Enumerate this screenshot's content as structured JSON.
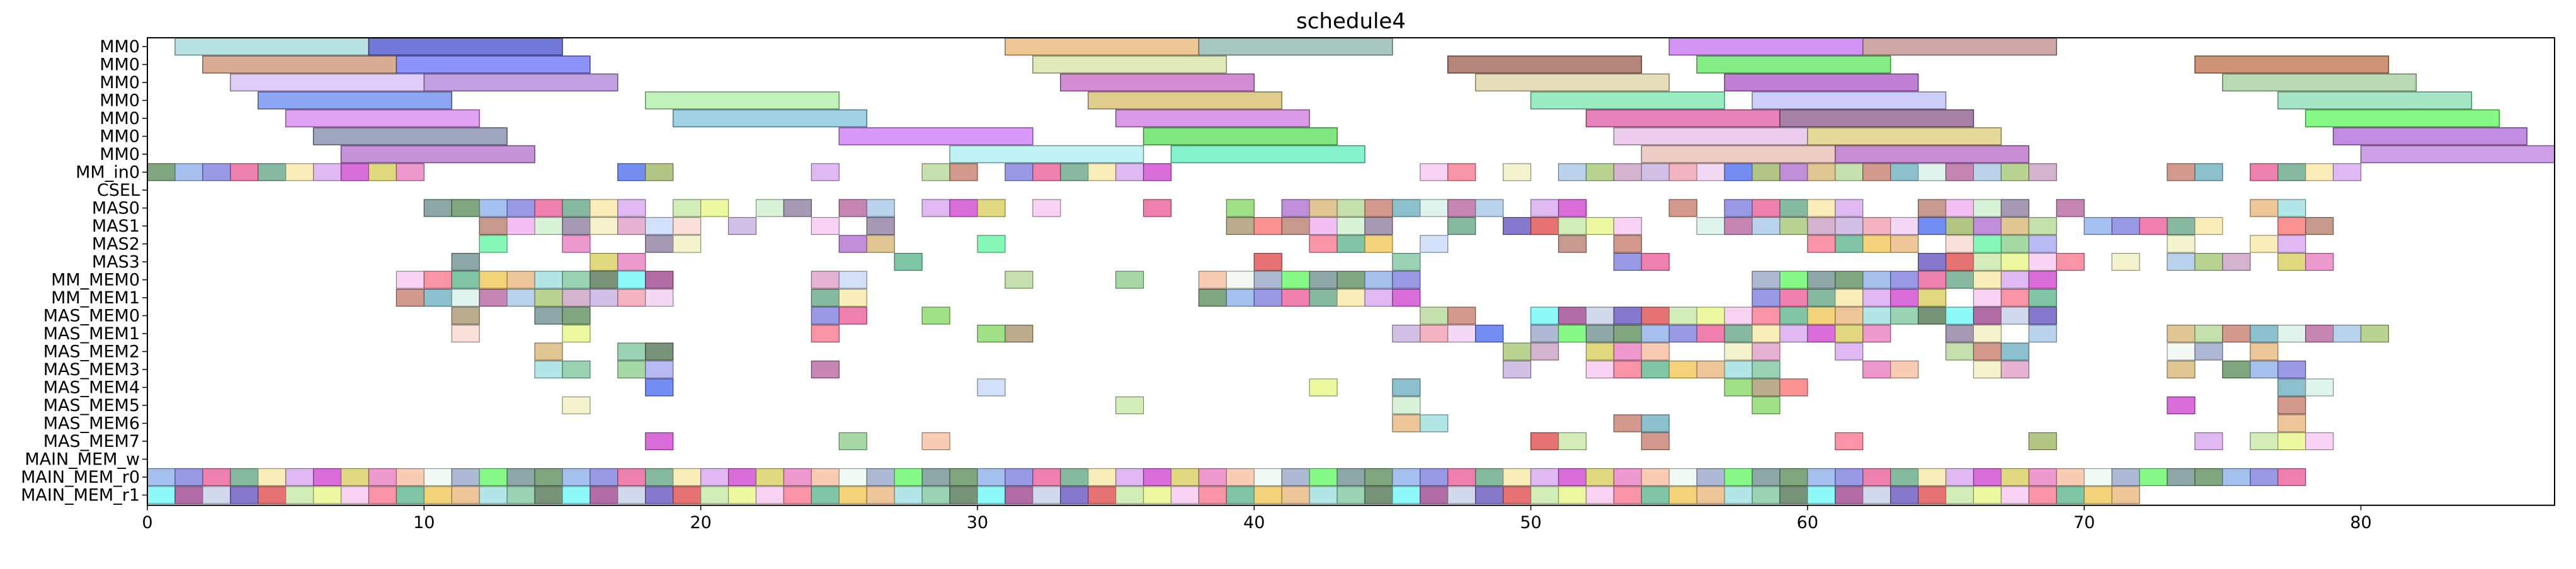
{
  "chart_data": {
    "type": "gantt",
    "title": "schedule4",
    "xlabel": "",
    "ylabel": "",
    "xlim": [
      0,
      87
    ],
    "xticks": [
      0,
      10,
      20,
      30,
      40,
      50,
      60,
      70,
      80
    ],
    "grid": false,
    "legend": "none",
    "rows": [
      "MM0",
      "MM0",
      "MM0",
      "MM0",
      "MM0",
      "MM0",
      "MM0",
      "MM_in0",
      "CSEL",
      "MAS0",
      "MAS1",
      "MAS2",
      "MAS3",
      "MM_MEM0",
      "MM_MEM1",
      "MAS_MEM0",
      "MAS_MEM1",
      "MAS_MEM2",
      "MAS_MEM3",
      "MAS_MEM4",
      "MAS_MEM5",
      "MAS_MEM6",
      "MAS_MEM7",
      "MAIN_MEM_w",
      "MAIN_MEM_r0",
      "MAIN_MEM_r1"
    ],
    "tasks": [
      {
        "row": 0,
        "start": 1,
        "end": 8,
        "color": "#a8dcdc"
      },
      {
        "row": 0,
        "start": 8,
        "end": 15,
        "color": "#5058d0"
      },
      {
        "row": 0,
        "start": 31,
        "end": 38,
        "color": "#e8b878"
      },
      {
        "row": 0,
        "start": 38,
        "end": 45,
        "color": "#90b8b0"
      },
      {
        "row": 0,
        "start": 55,
        "end": 62,
        "color": "#c878f0"
      },
      {
        "row": 0,
        "start": 62,
        "end": 69,
        "color": "#c09090"
      },
      {
        "row": 1,
        "start": 2,
        "end": 9,
        "color": "#d09878"
      },
      {
        "row": 1,
        "start": 9,
        "end": 16,
        "color": "#7078f8"
      },
      {
        "row": 1,
        "start": 32,
        "end": 39,
        "color": "#d8e4a8"
      },
      {
        "row": 1,
        "start": 47,
        "end": 54,
        "color": "#a06858"
      },
      {
        "row": 1,
        "start": 56,
        "end": 63,
        "color": "#68e868"
      },
      {
        "row": 1,
        "start": 74,
        "end": 81,
        "color": "#c07858"
      },
      {
        "row": 2,
        "start": 3,
        "end": 10,
        "color": "#d8c0f8"
      },
      {
        "row": 2,
        "start": 10,
        "end": 17,
        "color": "#b088d8"
      },
      {
        "row": 2,
        "start": 33,
        "end": 40,
        "color": "#c870c8"
      },
      {
        "row": 2,
        "start": 48,
        "end": 55,
        "color": "#e0d4a8"
      },
      {
        "row": 2,
        "start": 57,
        "end": 64,
        "color": "#b060c8"
      },
      {
        "row": 2,
        "start": 75,
        "end": 82,
        "color": "#a8d0a0"
      },
      {
        "row": 3,
        "start": 4,
        "end": 11,
        "color": "#7090f0"
      },
      {
        "row": 3,
        "start": 18,
        "end": 25,
        "color": "#b0f0a8"
      },
      {
        "row": 3,
        "start": 34,
        "end": 41,
        "color": "#d8c070"
      },
      {
        "row": 3,
        "start": 50,
        "end": 57,
        "color": "#80e8b0"
      },
      {
        "row": 3,
        "start": 58,
        "end": 65,
        "color": "#c0c0f8"
      },
      {
        "row": 3,
        "start": 77,
        "end": 84,
        "color": "#90e0b8"
      },
      {
        "row": 4,
        "start": 5,
        "end": 12,
        "color": "#d888f0"
      },
      {
        "row": 4,
        "start": 19,
        "end": 26,
        "color": "#88c8e0"
      },
      {
        "row": 4,
        "start": 35,
        "end": 42,
        "color": "#d080e0"
      },
      {
        "row": 4,
        "start": 52,
        "end": 59,
        "color": "#e060a8"
      },
      {
        "row": 4,
        "start": 59,
        "end": 66,
        "color": "#906090"
      },
      {
        "row": 4,
        "start": 78,
        "end": 85,
        "color": "#68f868"
      },
      {
        "row": 5,
        "start": 6,
        "end": 13,
        "color": "#8890b0"
      },
      {
        "row": 5,
        "start": 25,
        "end": 32,
        "color": "#d080f8"
      },
      {
        "row": 5,
        "start": 36,
        "end": 43,
        "color": "#60e060"
      },
      {
        "row": 5,
        "start": 53,
        "end": 60,
        "color": "#e8c0e8"
      },
      {
        "row": 5,
        "start": 60,
        "end": 67,
        "color": "#e0d080"
      },
      {
        "row": 5,
        "start": 79,
        "end": 86,
        "color": "#b070d8"
      },
      {
        "row": 6,
        "start": 7,
        "end": 14,
        "color": "#b878d0"
      },
      {
        "row": 6,
        "start": 29,
        "end": 36,
        "color": "#b0f0f0"
      },
      {
        "row": 6,
        "start": 37,
        "end": 44,
        "color": "#68f0c0"
      },
      {
        "row": 6,
        "start": 54,
        "end": 61,
        "color": "#e8c0b8"
      },
      {
        "row": 6,
        "start": 61,
        "end": 68,
        "color": "#b870c8"
      },
      {
        "row": 6,
        "start": 80,
        "end": 87,
        "color": "#c088e0"
      }
    ],
    "cells": [
      {
        "row": 7,
        "x": [
          0,
          1,
          2,
          3,
          4,
          5,
          6,
          7,
          8,
          9,
          17,
          18,
          24,
          28,
          29,
          31,
          32,
          33,
          34,
          35,
          36,
          46,
          47,
          49,
          51,
          52,
          53,
          54,
          55,
          56,
          57,
          58,
          59,
          60,
          61,
          62,
          63,
          64,
          65,
          66,
          67,
          68,
          73,
          74,
          76,
          77,
          78,
          79
        ]
      },
      {
        "row": 9,
        "x": [
          10,
          11,
          12,
          13,
          14,
          15,
          16,
          17,
          19,
          20,
          22,
          23,
          25,
          26,
          28,
          29,
          30,
          32,
          36,
          39,
          41,
          42,
          43,
          44,
          45,
          46,
          47,
          48,
          50,
          51,
          55,
          57,
          58,
          59,
          60,
          61,
          64,
          65,
          66,
          67,
          69,
          76,
          77
        ]
      },
      {
        "row": 10,
        "x": [
          12,
          13,
          14,
          15,
          16,
          17,
          18,
          19,
          21,
          24,
          26,
          39,
          40,
          41,
          42,
          43,
          44,
          47,
          49,
          50,
          51,
          52,
          53,
          56,
          57,
          58,
          59,
          60,
          61,
          62,
          63,
          64,
          65,
          66,
          67,
          68,
          70,
          71,
          72,
          73,
          74,
          77,
          78
        ]
      },
      {
        "row": 11,
        "x": [
          12,
          15,
          18,
          19,
          25,
          26,
          30,
          42,
          43,
          44,
          46,
          51,
          53,
          60,
          61,
          62,
          63,
          65,
          66,
          67,
          68,
          73,
          76,
          77
        ]
      },
      {
        "row": 12,
        "x": [
          11,
          16,
          17,
          27,
          40,
          45,
          53,
          54,
          64,
          65,
          66,
          67,
          68,
          69,
          71,
          73,
          74,
          75,
          77,
          78
        ]
      },
      {
        "row": 13,
        "x": [
          9,
          10,
          11,
          12,
          13,
          14,
          15,
          16,
          17,
          18,
          24,
          25,
          31,
          35,
          38,
          39,
          40,
          41,
          42,
          43,
          44,
          45,
          58,
          59,
          60,
          61,
          62,
          63,
          64,
          65,
          66,
          67,
          68
        ]
      },
      {
        "row": 14,
        "x": [
          9,
          10,
          11,
          12,
          13,
          14,
          15,
          16,
          17,
          18,
          24,
          25,
          38,
          39,
          40,
          41,
          42,
          43,
          44,
          45,
          58,
          59,
          60,
          61,
          62,
          63,
          64,
          66,
          67,
          68
        ]
      },
      {
        "row": 15,
        "x": [
          11,
          14,
          15,
          24,
          25,
          28,
          46,
          47,
          50,
          51,
          52,
          53,
          54,
          55,
          56,
          57,
          58,
          59,
          60,
          61,
          62,
          63,
          64,
          65,
          66,
          67,
          68
        ]
      },
      {
        "row": 16,
        "x": [
          11,
          15,
          24,
          30,
          31,
          45,
          46,
          47,
          48,
          50,
          51,
          52,
          53,
          54,
          55,
          56,
          57,
          58,
          59,
          60,
          61,
          62,
          65,
          66,
          68,
          73,
          74,
          75,
          76,
          77,
          78,
          79,
          80
        ]
      },
      {
        "row": 17,
        "x": [
          14,
          17,
          18,
          49,
          50,
          52,
          53,
          54,
          57,
          58,
          61,
          65,
          66,
          67,
          73,
          74,
          76
        ]
      },
      {
        "row": 18,
        "x": [
          14,
          15,
          17,
          18,
          24,
          49,
          52,
          53,
          54,
          55,
          56,
          57,
          58,
          62,
          63,
          66,
          67,
          73,
          75,
          76,
          77
        ]
      },
      {
        "row": 19,
        "x": [
          18,
          30,
          42,
          45,
          57,
          58,
          59,
          77,
          78
        ]
      },
      {
        "row": 20,
        "x": [
          15,
          35,
          45,
          58,
          73,
          77
        ]
      },
      {
        "row": 21,
        "x": [
          45,
          46,
          53,
          54,
          77
        ]
      },
      {
        "row": 22,
        "x": [
          18,
          25,
          28,
          50,
          51,
          54,
          61,
          68,
          74,
          76,
          77,
          78
        ]
      },
      {
        "row": 24,
        "x": [
          0,
          1,
          2,
          3,
          4,
          5,
          6,
          7,
          8,
          9,
          10,
          11,
          12,
          13,
          14,
          15,
          16,
          17,
          18,
          19,
          20,
          21,
          22,
          23,
          24,
          25,
          26,
          27,
          28,
          29,
          30,
          31,
          32,
          33,
          34,
          35,
          36,
          37,
          38,
          39,
          40,
          41,
          42,
          43,
          44,
          45,
          46,
          47,
          48,
          49,
          50,
          51,
          52,
          53,
          54,
          55,
          56,
          57,
          58,
          59,
          60,
          61,
          62,
          63,
          64,
          65,
          66,
          67,
          68,
          69,
          70,
          71,
          72,
          73,
          74,
          75,
          76,
          77
        ]
      },
      {
        "row": 25,
        "x": [
          0,
          1,
          2,
          3,
          4,
          5,
          6,
          7,
          8,
          9,
          10,
          11,
          12,
          13,
          14,
          15,
          16,
          17,
          18,
          19,
          20,
          21,
          22,
          23,
          24,
          25,
          26,
          27,
          28,
          29,
          30,
          31,
          32,
          33,
          34,
          35,
          36,
          37,
          38,
          39,
          40,
          41,
          42,
          43,
          44,
          45,
          46,
          47,
          48,
          49,
          50,
          51,
          52,
          53,
          54,
          55,
          56,
          57,
          58,
          59,
          60,
          61,
          62,
          63,
          64,
          65,
          66,
          67,
          68,
          69,
          70,
          71
        ]
      }
    ],
    "palette": [
      "#a8c8e8",
      "#f8e8a8",
      "#6858c0",
      "#a89870",
      "#b070d0",
      "#68f868",
      "#e8b880",
      "#c8d8f8",
      "#a8c878",
      "#d8a8f0",
      "#e05050",
      "#f87878",
      "#d8b878",
      "#709090",
      "#a0e0e0",
      "#f8d8d0",
      "#c8a0c0",
      "#d048d0",
      "#c8e8a8",
      "#b88070",
      "#b8d898",
      "#609060",
      "#80c8a0",
      "#68f8a8",
      "#c8b0e0",
      "#d8d060",
      "#e8f888",
      "#f0b0f0",
      "#c88070",
      "#90b0e8",
      "#587858",
      "#90d090",
      "#f0a0b0",
      "#e880c0",
      "#f8c8f0",
      "#d0f0d0",
      "#70b0c0",
      "#8080e0",
      "#70f8f8",
      "#a8a8f0",
      "#f0d0f0",
      "#f8c0a0",
      "#f87890",
      "#9080a0",
      "#d8f0e8",
      "#e86098",
      "#a04890",
      "#7060d0",
      "#5070f0",
      "#f0f8f0",
      "#60b890",
      "#f0f0c0",
      "#b868a0",
      "#68a888",
      "#c8d0e8",
      "#88d868",
      "#a0b868",
      "#98a8c8",
      "#f0c858",
      "#e0a0c8"
    ]
  }
}
